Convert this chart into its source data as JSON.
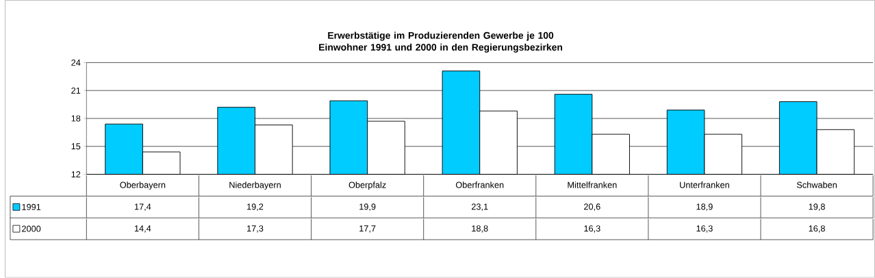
{
  "chart_data": {
    "type": "bar",
    "title": "Erwerbstätige im Produzierenden Gewerbe je 100 Einwohner 1991 und 2000 in den Regierungsbezirken",
    "categories": [
      "Oberbayern",
      "Niederbayern",
      "Oberpfalz",
      "Oberfranken",
      "Mittelfranken",
      "Unterfranken",
      "Schwaben"
    ],
    "series": [
      {
        "name": "1991",
        "color": "#00ccff",
        "values": [
          17.4,
          19.2,
          19.9,
          23.1,
          20.6,
          18.9,
          19.8
        ],
        "value_labels": [
          "17,4",
          "19,2",
          "19,9",
          "23,1",
          "20,6",
          "18,9",
          "19,8"
        ]
      },
      {
        "name": "2000",
        "color": "#ffffff",
        "values": [
          14.4,
          17.3,
          17.7,
          18.8,
          16.3,
          16.3,
          16.8
        ],
        "value_labels": [
          "14,4",
          "17,3",
          "17,7",
          "18,8",
          "16,3",
          "16,3",
          "16,8"
        ]
      }
    ],
    "ylim": [
      12,
      24
    ],
    "yticks": [
      12,
      15,
      18,
      21,
      24
    ],
    "grid": "y",
    "legend": "bottom left"
  }
}
